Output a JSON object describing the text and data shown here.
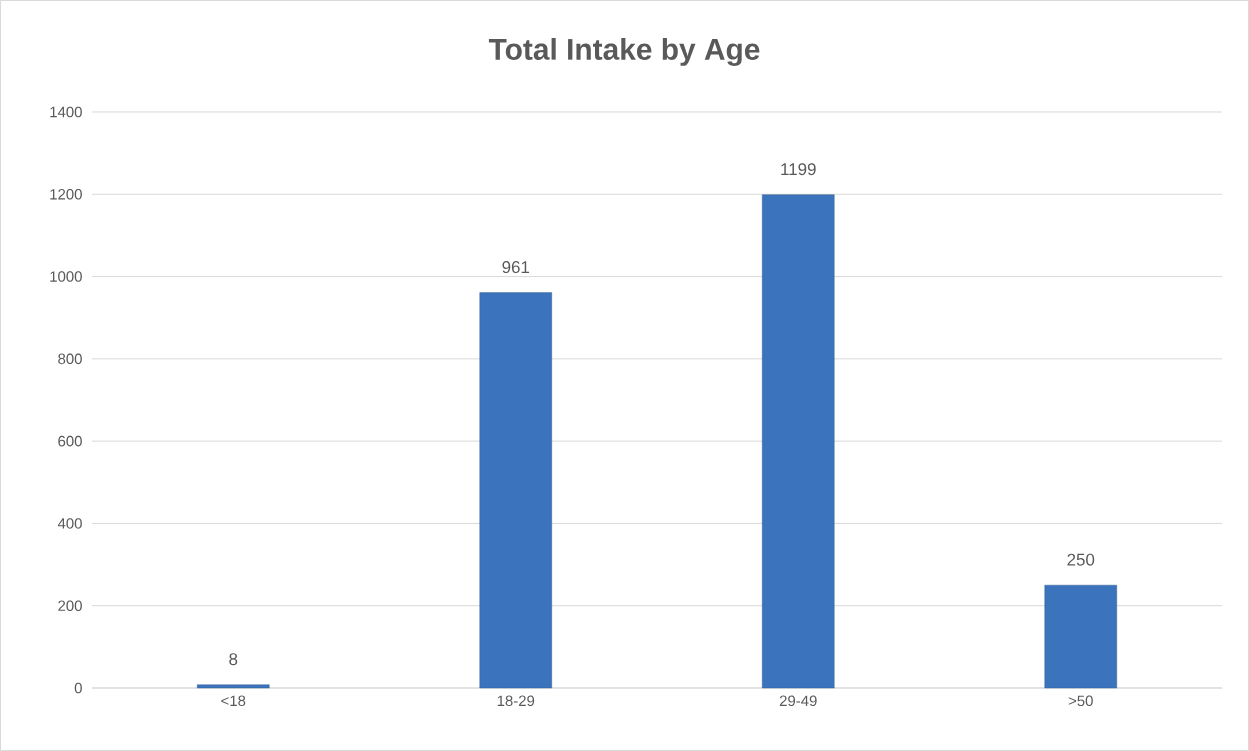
{
  "chart_data": {
    "type": "bar",
    "title": "Total Intake by Age",
    "categories": [
      "<18",
      "18-29",
      "29-49",
      ">50"
    ],
    "values": [
      8,
      961,
      1199,
      250
    ],
    "color": "#3b74bd",
    "ylim": [
      0,
      1400
    ],
    "yticks": [
      0,
      200,
      400,
      600,
      800,
      1000,
      1200,
      1400
    ],
    "grid": "y",
    "data_labels": true
  }
}
